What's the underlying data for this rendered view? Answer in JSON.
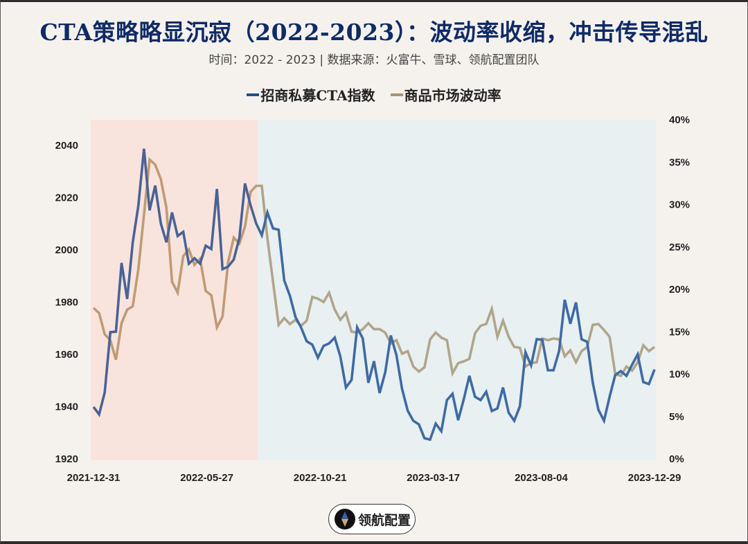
{
  "title": "CTA策略略显沉寂（2022-2023）：波动率收缩，冲击传导混乱",
  "subtitle": "时间：2022 - 2023 | 数据来源：火富牛、雪球、领航配置团队",
  "logo": {
    "text": "领航配置",
    "icon": "compass-diamond-icon"
  },
  "chart_data": {
    "type": "line",
    "title": "CTA策略略显沉寂（2022-2023）：波动率收缩，冲击传导混乱",
    "x_range": [
      "2021-12-31",
      "2023-12-29"
    ],
    "x_ticks": [
      "2021-12-31",
      "2022-05-27",
      "2022-10-21",
      "2023-03-17",
      "2023-08-04",
      "2023-12-29"
    ],
    "y_left": {
      "lim": [
        1920,
        2050
      ],
      "ticks": [
        "1920",
        "1940",
        "1960",
        "1980",
        "2000",
        "2020",
        "2040"
      ]
    },
    "y_right": {
      "lim": [
        0,
        40
      ],
      "ticks": [
        "0%",
        "5%",
        "10%",
        "15%",
        "20%",
        "25%",
        "30%",
        "35%",
        "40%"
      ]
    },
    "regions": [
      {
        "from": "2021-12-31",
        "to": "2022-08-01",
        "color": "#f8e4dd"
      },
      {
        "from": "2022-08-01",
        "to": "2023-12-29",
        "color": "#e8f0f1"
      }
    ],
    "legend_position": "top",
    "grid": false,
    "series": [
      {
        "name": "招商私募CTA指数",
        "axis": "left",
        "color": "#3f6aa3",
        "color_start": "#4a6296",
        "values": [
          1939.9,
          1937,
          1945.4,
          1968.5,
          1968.7,
          1995,
          1981.2,
          2002.9,
          2017,
          2038.7,
          2015.1,
          2024.6,
          2010.1,
          2002.9,
          2014.3,
          2005.3,
          2006.9,
          1994.7,
          1996.8,
          1994.7,
          2001.6,
          2000.3,
          2023.3,
          1992.6,
          1993.6,
          1996.3,
          2004.5,
          2025.4,
          2017,
          2010.1,
          2005.6,
          2014.3,
          2008.2,
          2007.7,
          1988.3,
          1982.5,
          1974.3,
          1970.3,
          1965,
          1963.7,
          1958.7,
          1963.2,
          1964.2,
          1966.4,
          1959.2,
          1947.3,
          1950.2,
          1970.3,
          1966.1,
          1949.1,
          1957.4,
          1945.2,
          1953.1,
          1967.2,
          1959.7,
          1946.8,
          1938.5,
          1934.6,
          1933.2,
          1927.9,
          1927.4,
          1933.5,
          1930.6,
          1942.5,
          1944.9,
          1934.8,
          1942.8,
          1951.8,
          1943.8,
          1942.5,
          1945.7,
          1938.3,
          1939.3,
          1947.3,
          1937.7,
          1934.6,
          1940.1,
          1960.8,
          1955.8,
          1965.8,
          1965.6,
          1953.9,
          1953.9,
          1961.3,
          1980.9,
          1971.7,
          1979.9,
          1965.8,
          1964.8,
          1949.1,
          1938.8,
          1934.6,
          1943.8,
          1952.1,
          1953.6,
          1951.8,
          1956,
          1960,
          1949.4,
          1948.6,
          1954.2
        ]
      },
      {
        "name": "商品市场波动率",
        "axis": "right",
        "color": "#b0a58b",
        "color_start": "#c09a74",
        "values": [
          17.8,
          17.2,
          14.7,
          14.0,
          11.7,
          16.0,
          17.6,
          18.0,
          22.4,
          28.8,
          35.3,
          34.7,
          33.0,
          29.6,
          20.9,
          19.6,
          23.9,
          24.7,
          22.9,
          23.6,
          19.8,
          19.3,
          15.5,
          16.8,
          23.2,
          26.1,
          25.4,
          27.4,
          31.5,
          32.2,
          32.2,
          26.0,
          20.9,
          15.8,
          16.6,
          15.9,
          16.4,
          15.7,
          16.3,
          19.1,
          18.9,
          18.5,
          19.6,
          17.6,
          16.4,
          17.2,
          15.0,
          14.9,
          15.3,
          16.0,
          15.3,
          15.3,
          14.9,
          13.6,
          14.0,
          12.4,
          12.7,
          10.9,
          10.3,
          10.8,
          14.1,
          14.9,
          14.3,
          14.0,
          10.1,
          11.3,
          11.5,
          11.8,
          14.8,
          15.7,
          15.9,
          17.7,
          14.4,
          16.3,
          14.4,
          13.2,
          13.1,
          10.9,
          11.3,
          11.4,
          14.2,
          14.0,
          14.2,
          14.1,
          12.1,
          12.8,
          11.4,
          12.7,
          13.2,
          15.8,
          15.9,
          15.2,
          14.4,
          10.0,
          9.8,
          10.9,
          10.4,
          11.4,
          13.4,
          12.7,
          13.2
        ]
      }
    ]
  }
}
